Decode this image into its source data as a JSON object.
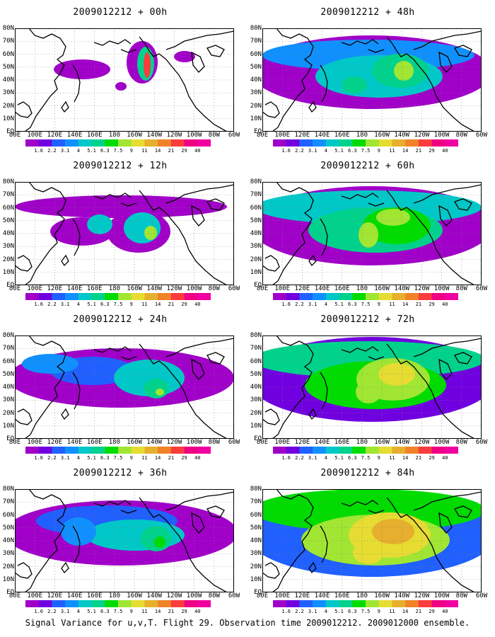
{
  "footer": "Signal Variance for u,v,T. Flight 29. Observation time 2009012212. 2009012000 ensemble.",
  "lat_labels": [
    "80N",
    "70N",
    "60N",
    "50N",
    "40N",
    "30N",
    "20N",
    "10N",
    "EQ"
  ],
  "lon_labels": [
    "80E",
    "100E",
    "120E",
    "140E",
    "160E",
    "180",
    "160W",
    "140W",
    "120W",
    "100W",
    "80W",
    "60W"
  ],
  "colorbar": {
    "labels": [
      "1.6",
      "2.2",
      "3.1",
      "4",
      "5.1",
      "6.3",
      "7.5",
      "9",
      "11",
      "14",
      "21",
      "29",
      "40"
    ],
    "colors": [
      "#a000c8",
      "#7000e0",
      "#2060ff",
      "#1090ff",
      "#00c8c8",
      "#00d28c",
      "#00dc00",
      "#a0e632",
      "#e6dc32",
      "#e6af2d",
      "#f08228",
      "#fa3c3c",
      "#f00082"
    ]
  },
  "panels": [
    {
      "title": "2009012212 + 00h",
      "level": 0
    },
    {
      "title": "2009012212 + 48h",
      "level": 4
    },
    {
      "title": "2009012212 + 12h",
      "level": 1
    },
    {
      "title": "2009012212 + 60h",
      "level": 5
    },
    {
      "title": "2009012212 + 24h",
      "level": 2
    },
    {
      "title": "2009012212 + 72h",
      "level": 6
    },
    {
      "title": "2009012212 + 36h",
      "level": 3
    },
    {
      "title": "2009012212 + 84h",
      "level": 7
    }
  ]
}
